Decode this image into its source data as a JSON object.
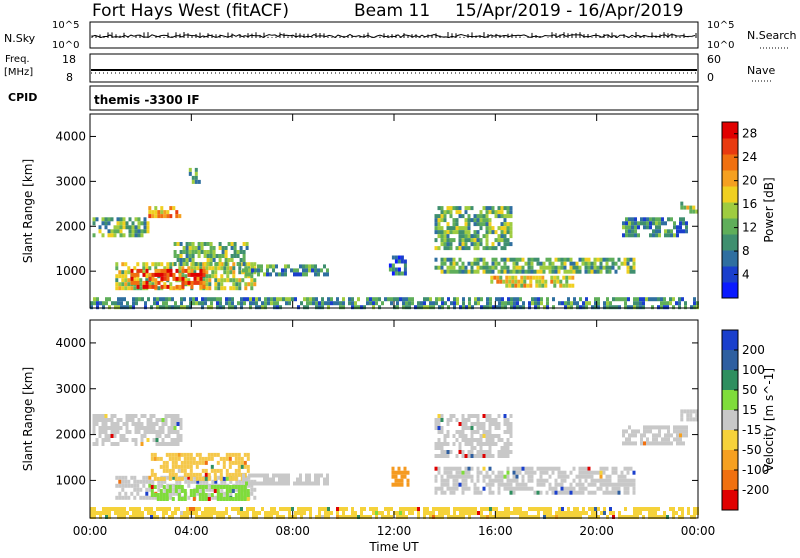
{
  "header": {
    "radar": "Fort Hays West (fitACF)",
    "beam": "Beam 11",
    "date_range": "15/Apr/2019 - 16/Apr/2019"
  },
  "status_panels": {
    "nsky_label": "N.Sky",
    "nsky_ticks": [
      "10^5",
      "10^0"
    ],
    "nsearch_label": "N.Search",
    "nsearch_ticks": [
      "10^5",
      "10^0"
    ],
    "freq_label_1": "Freq.",
    "freq_label_2": "[MHz]",
    "freq_ticks": [
      "18",
      "8"
    ],
    "nave_label": "Nave",
    "nave_ticks": [
      "60",
      "0"
    ],
    "cpid_label": "CPID",
    "cpid_value": "themis -3300 IF"
  },
  "chart_data": [
    {
      "type": "heatmap",
      "panel": "power",
      "xlabel": "",
      "ylabel": "Slant Range [km]",
      "x_ticks": [
        "00:00",
        "04:00",
        "08:00",
        "12:00",
        "16:00",
        "20:00",
        "00:00"
      ],
      "xlim_hours": [
        0,
        24
      ],
      "ylim_km": [
        180,
        4500
      ],
      "y_ticks": [
        1000,
        2000,
        3000,
        4000
      ],
      "colorbar": {
        "label": "Power [dB]",
        "ticks": [
          4,
          8,
          12,
          16,
          20,
          24,
          28
        ],
        "range": [
          0,
          30
        ],
        "colors": [
          "#0a1aff",
          "#1a3fcc",
          "#2f6fa0",
          "#3f8f6f",
          "#5fae5a",
          "#9fcc40",
          "#f0d020",
          "#f5a020",
          "#f07010",
          "#e83a10",
          "#e00000"
        ]
      },
      "regions": [
        {
          "t0": 0.1,
          "t1": 2.3,
          "r0": 1800,
          "r1": 2200,
          "level": 4
        },
        {
          "t0": 2.3,
          "t1": 3.6,
          "r0": 2250,
          "r1": 2450,
          "level": 7
        },
        {
          "t0": 1.0,
          "t1": 6.5,
          "r0": 600,
          "r1": 1200,
          "level": 5
        },
        {
          "t0": 1.6,
          "t1": 4.5,
          "r0": 650,
          "r1": 1050,
          "level": 9
        },
        {
          "t0": 3.3,
          "t1": 6.2,
          "r0": 1150,
          "r1": 1650,
          "level": 4
        },
        {
          "t0": 6.0,
          "t1": 9.4,
          "r0": 900,
          "r1": 1150,
          "level": 3
        },
        {
          "t0": 11.8,
          "t1": 12.5,
          "r0": 950,
          "r1": 1350,
          "level": 2
        },
        {
          "t0": 13.6,
          "t1": 16.6,
          "r0": 1550,
          "r1": 2450,
          "level": 4
        },
        {
          "t0": 13.6,
          "t1": 21.5,
          "r0": 950,
          "r1": 1300,
          "level": 4
        },
        {
          "t0": 15.8,
          "t1": 19.0,
          "r0": 700,
          "r1": 900,
          "level": 6
        },
        {
          "t0": 21.0,
          "t1": 23.5,
          "r0": 1800,
          "r1": 2200,
          "level": 3
        },
        {
          "t0": 23.3,
          "t1": 24.0,
          "r0": 2300,
          "r1": 2550,
          "level": 5
        },
        {
          "t0": 0.0,
          "t1": 24.0,
          "r0": 180,
          "r1": 420,
          "level": 3
        },
        {
          "t0": 3.9,
          "t1": 4.3,
          "r0": 3000,
          "r1": 3300,
          "level": 4
        }
      ]
    },
    {
      "type": "heatmap",
      "panel": "velocity",
      "xlabel": "Time UT",
      "ylabel": "Slant Range [km]",
      "x_ticks": [
        "00:00",
        "04:00",
        "08:00",
        "12:00",
        "16:00",
        "20:00",
        "00:00"
      ],
      "xlim_hours": [
        0,
        24
      ],
      "ylim_km": [
        180,
        4500
      ],
      "y_ticks": [
        1000,
        2000,
        3000,
        4000
      ],
      "colorbar": {
        "label": "Velocity [m s^-1]",
        "ticks": [
          200,
          100,
          50,
          15,
          -15,
          -50,
          -100,
          -200
        ],
        "colors": [
          "#1a3fcc",
          "#2f5fa0",
          "#2f8f5f",
          "#7fdc3a",
          "#c8c8c8",
          "#f5d23a",
          "#f5a020",
          "#f07010",
          "#e00000"
        ]
      },
      "regions": [
        {
          "t0": 0.1,
          "t1": 3.6,
          "r0": 1800,
          "r1": 2450,
          "color": "#c8c8c8"
        },
        {
          "t0": 1.0,
          "t1": 6.5,
          "r0": 600,
          "r1": 1100,
          "color": "#c8c8c8"
        },
        {
          "t0": 2.4,
          "t1": 6.3,
          "r0": 600,
          "r1": 900,
          "color": "#7fdc3a"
        },
        {
          "t0": 2.4,
          "t1": 6.3,
          "r0": 1000,
          "r1": 1600,
          "color": "#f5c84a"
        },
        {
          "t0": 6.0,
          "t1": 9.4,
          "r0": 900,
          "r1": 1150,
          "color": "#c8c8c8"
        },
        {
          "t0": 11.9,
          "t1": 12.6,
          "r0": 950,
          "r1": 1300,
          "color": "#f59a20"
        },
        {
          "t0": 13.6,
          "t1": 16.6,
          "r0": 1550,
          "r1": 2450,
          "color": "#c8c8c8"
        },
        {
          "t0": 13.6,
          "t1": 21.5,
          "r0": 700,
          "r1": 1300,
          "color": "#c8c8c8"
        },
        {
          "t0": 21.0,
          "t1": 23.5,
          "r0": 1800,
          "r1": 2200,
          "color": "#c8c8c8"
        },
        {
          "t0": 23.3,
          "t1": 24.0,
          "r0": 2300,
          "r1": 2550,
          "color": "#c8c8c8"
        },
        {
          "t0": 0.0,
          "t1": 24.0,
          "r0": 180,
          "r1": 420,
          "color": "#f5d23a"
        }
      ]
    }
  ]
}
